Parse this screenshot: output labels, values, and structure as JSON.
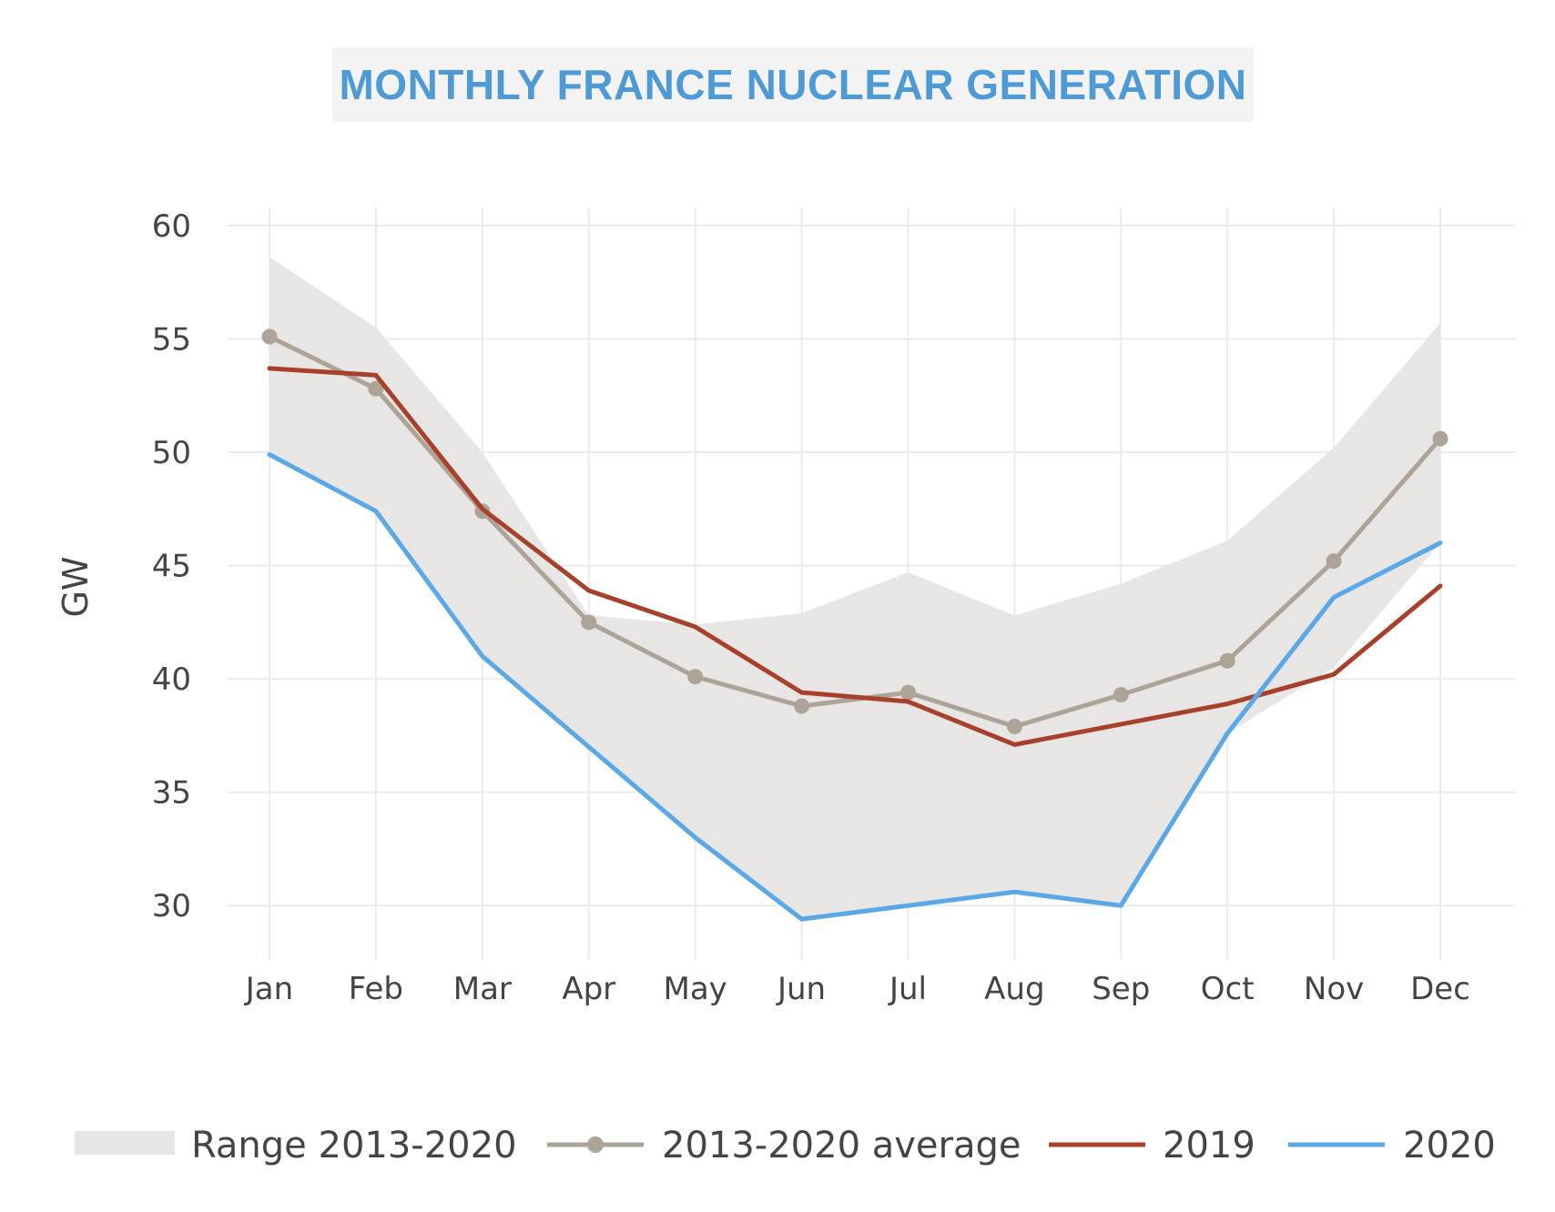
{
  "chart_data": {
    "type": "line",
    "title": "MONTHLY FRANCE NUCLEAR GENERATION",
    "xlabel": "",
    "ylabel": "GW",
    "ylim": [
      27.6,
      60.8
    ],
    "yticks": [
      30,
      35,
      40,
      45,
      50,
      55,
      60
    ],
    "categories": [
      "Jan",
      "Feb",
      "Mar",
      "Apr",
      "May",
      "Jun",
      "Jul",
      "Aug",
      "Sep",
      "Oct",
      "Nov",
      "Dec"
    ],
    "grid": true,
    "legend_position": "bottom",
    "range": {
      "name": "Range 2013-2020",
      "color": "#e8e6e4",
      "low": [
        49.9,
        47.4,
        41.0,
        37.0,
        33.0,
        29.4,
        30.0,
        30.6,
        30.0,
        37.6,
        40.5,
        46.0
      ],
      "high": [
        58.6,
        55.5,
        50.0,
        42.8,
        42.4,
        42.9,
        44.7,
        42.8,
        44.2,
        46.1,
        50.2,
        55.7
      ]
    },
    "series": [
      {
        "name": "2013-2020 average",
        "color": "#ada396",
        "markers": true,
        "values": [
          55.1,
          52.8,
          47.4,
          42.5,
          40.1,
          38.8,
          39.4,
          37.9,
          39.3,
          40.8,
          45.2,
          50.6
        ]
      },
      {
        "name": "2019",
        "color": "#a8412c",
        "markers": false,
        "values": [
          53.7,
          53.4,
          47.5,
          43.9,
          42.3,
          39.4,
          39.0,
          37.1,
          38.0,
          38.9,
          40.2,
          44.1
        ]
      },
      {
        "name": "2020",
        "color": "#5aa8e6",
        "markers": false,
        "values": [
          49.9,
          47.4,
          41.0,
          37.0,
          33.0,
          29.4,
          30.0,
          30.6,
          30.0,
          37.6,
          43.6,
          46.0
        ]
      }
    ]
  }
}
